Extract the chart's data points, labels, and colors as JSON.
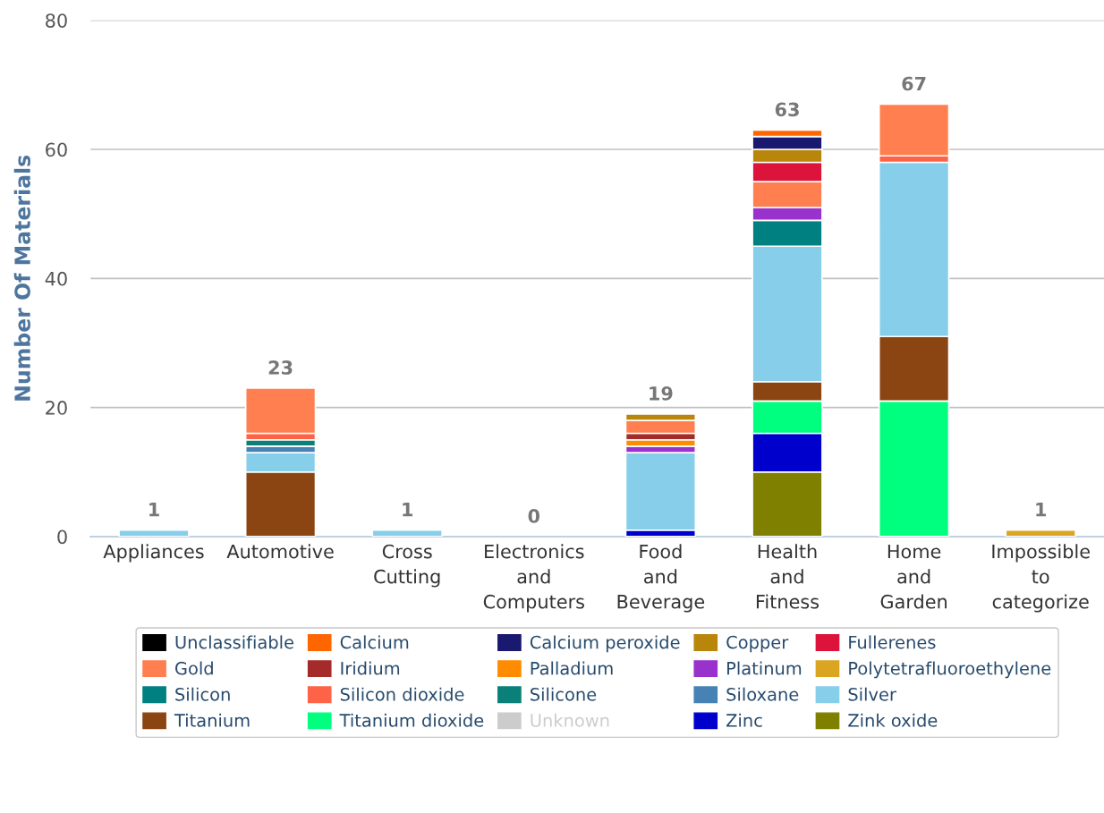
{
  "chart_data": {
    "type": "bar",
    "stacked": true,
    "ylabel": "Number Of Materials",
    "categories": [
      "Appliances",
      "Automotive",
      "Cross\nCutting",
      "Electronics\nand\nComputers",
      "Food\nand\nBeverage",
      "Health\nand\nFitness",
      "Home\nand\nGarden",
      "Impossible\nto\ncategorize"
    ],
    "ylim": [
      0,
      80
    ],
    "yticks": [
      0,
      20,
      40,
      60,
      80
    ],
    "grid": "y",
    "legend": "bottom",
    "totals": [
      "1",
      "23",
      "1",
      "0",
      "19",
      "63",
      "67",
      "1"
    ],
    "series": [
      {
        "name": "Zink oxide",
        "color": "#808000",
        "values": [
          null,
          null,
          null,
          null,
          null,
          10,
          null,
          null
        ]
      },
      {
        "name": "Zinc",
        "color": "#0000cd",
        "values": [
          null,
          null,
          null,
          null,
          1,
          6,
          null,
          null
        ]
      },
      {
        "name": "Unknown",
        "color": "#cccccc",
        "values": [
          null,
          null,
          null,
          null,
          null,
          null,
          null,
          null
        ]
      },
      {
        "name": "Titanium dioxide",
        "color": "#00ff7f",
        "values": [
          null,
          null,
          null,
          null,
          null,
          5,
          21,
          null
        ]
      },
      {
        "name": "Titanium",
        "color": "#8b4513",
        "values": [
          null,
          10,
          null,
          null,
          null,
          3,
          10,
          null
        ]
      },
      {
        "name": "Silver",
        "color": "#87ceeb",
        "values": [
          1,
          3,
          1,
          null,
          12,
          21,
          27,
          null
        ]
      },
      {
        "name": "Siloxane",
        "color": "#4682b4",
        "values": [
          null,
          1,
          null,
          null,
          null,
          null,
          null,
          null
        ]
      },
      {
        "name": "Silicone",
        "color": "#0a8078",
        "values": [
          null,
          1,
          null,
          null,
          null,
          null,
          null,
          null
        ]
      },
      {
        "name": "Silicon dioxide",
        "color": "#ff6347",
        "values": [
          null,
          1,
          null,
          null,
          null,
          null,
          1,
          null
        ]
      },
      {
        "name": "Silicon",
        "color": "#008080",
        "values": [
          null,
          null,
          null,
          null,
          null,
          4,
          null,
          null
        ]
      },
      {
        "name": "Polytetrafluoroethylene",
        "color": "#daa520",
        "values": [
          null,
          null,
          null,
          null,
          null,
          null,
          null,
          1
        ]
      },
      {
        "name": "Platinum",
        "color": "#9932cc",
        "values": [
          null,
          null,
          null,
          null,
          1,
          2,
          null,
          null
        ]
      },
      {
        "name": "Palladium",
        "color": "#ff8c00",
        "values": [
          null,
          null,
          null,
          null,
          1,
          null,
          null,
          null
        ]
      },
      {
        "name": "Iridium",
        "color": "#a52a2a",
        "values": [
          null,
          null,
          null,
          null,
          1,
          null,
          null,
          null
        ]
      },
      {
        "name": "Gold",
        "color": "#ff7f50",
        "values": [
          null,
          7,
          null,
          null,
          2,
          4,
          8,
          null
        ]
      },
      {
        "name": "Fullerenes",
        "color": "#dc143c",
        "values": [
          null,
          null,
          null,
          null,
          null,
          3,
          null,
          null
        ]
      },
      {
        "name": "Copper",
        "color": "#b8860b",
        "values": [
          null,
          null,
          null,
          null,
          1,
          2,
          null,
          null
        ]
      },
      {
        "name": "Calcium peroxide",
        "color": "#191970",
        "values": [
          null,
          null,
          null,
          null,
          null,
          2,
          null,
          null
        ]
      },
      {
        "name": "Calcium",
        "color": "#ff6600",
        "values": [
          null,
          null,
          null,
          null,
          null,
          1,
          null,
          null
        ]
      },
      {
        "name": "Unclassifiable",
        "color": "#000000",
        "values": [
          null,
          null,
          null,
          null,
          null,
          null,
          null,
          null
        ]
      }
    ]
  }
}
